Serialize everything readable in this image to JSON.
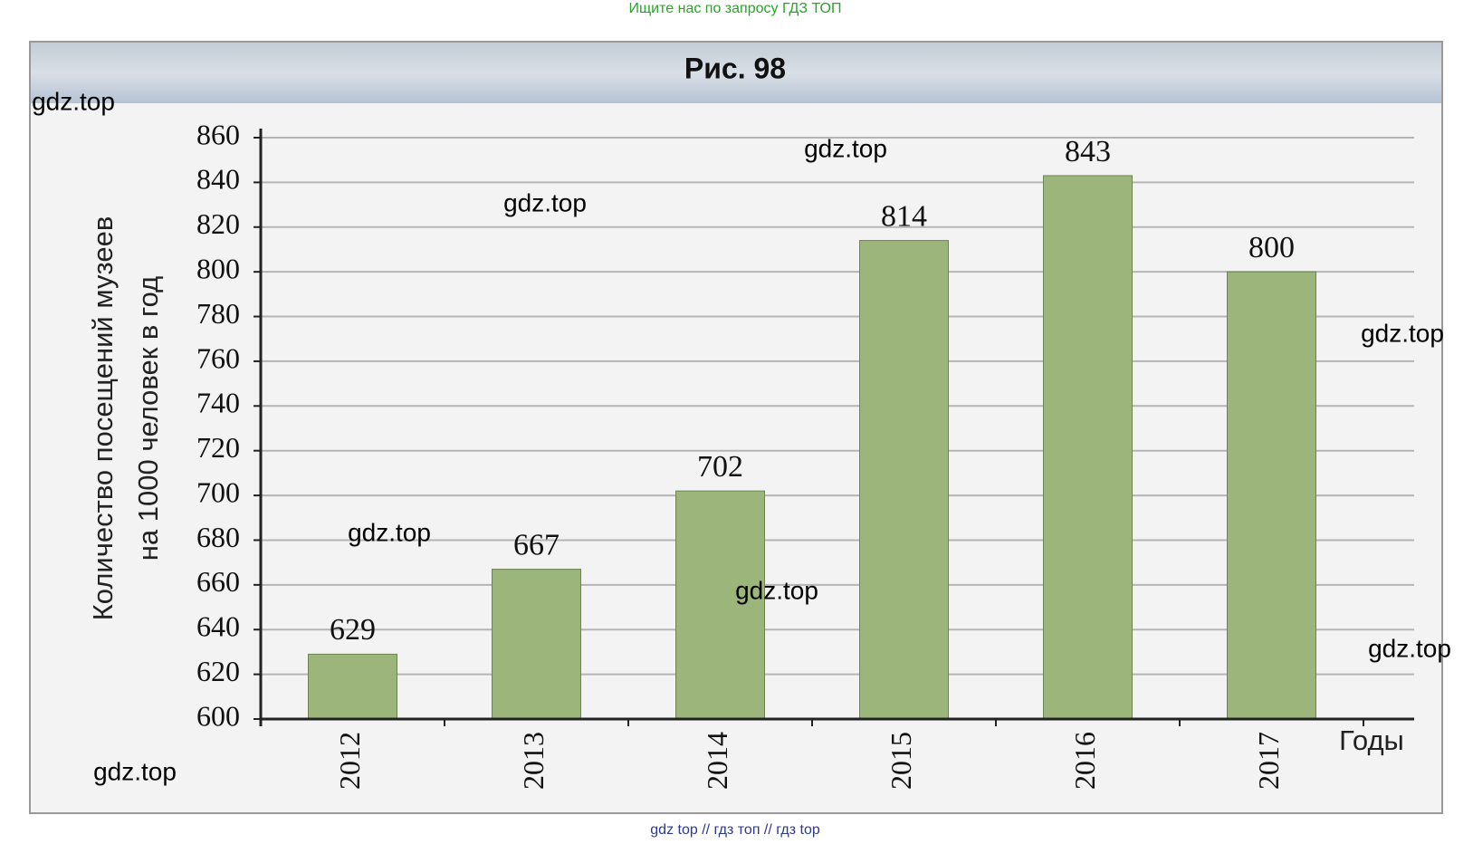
{
  "chart_data": {
    "type": "bar",
    "title": "Рис. 98",
    "y_label": [
      "Количество посещений музеев",
      "на 1000 человек в год"
    ],
    "x_label": "Годы",
    "categories": [
      "2012",
      "2013",
      "2014",
      "2015",
      "2016",
      "2017"
    ],
    "values": [
      629,
      667,
      702,
      814,
      843,
      800
    ],
    "color": "#9cb57a",
    "ylim": [
      600,
      860
    ],
    "yticks": [
      600,
      620,
      640,
      660,
      680,
      700,
      720,
      740,
      760,
      780,
      800,
      820,
      840,
      860
    ],
    "grid": true
  },
  "watermarks": {
    "top": "Ищите нас по запросу ГДЗ ТОП",
    "bottom": "gdz top  //  гдз топ  //  гдз top",
    "marks": [
      "gdz.top",
      "gdz.top",
      "gdz.top",
      "gdz.top",
      "gdz.top",
      "gdz.top",
      "gdz.top",
      "gdz.top"
    ]
  }
}
